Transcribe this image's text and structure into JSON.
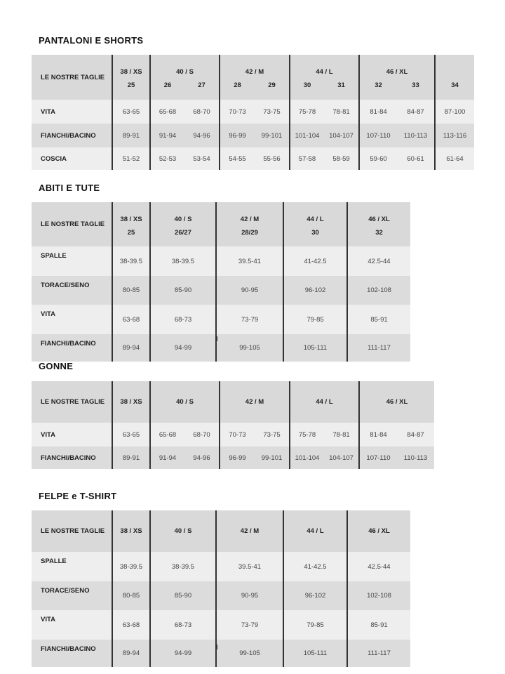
{
  "tables": [
    {
      "title": "PANTALONI E SHORTS",
      "header_label": "LE NOSTRE TAGLIE",
      "sizes": [
        "38 / XS",
        "40 / S",
        "42 / M",
        "44 / L",
        "46 / XL",
        ""
      ],
      "subheaders": [
        "25",
        "26",
        "27",
        "28",
        "29",
        "30",
        "31",
        "32",
        "33",
        "34"
      ],
      "rows": [
        {
          "label": "VITA",
          "values": [
            "63-65",
            "65-68",
            "68-70",
            "70-73",
            "73-75",
            "75-78",
            "78-81",
            "81-84",
            "84-87",
            "87-100"
          ]
        },
        {
          "label": "FIANCHI/BACINO",
          "values": [
            "89-91",
            "91-94",
            "94-96",
            "96-99",
            "99-101",
            "101-104",
            "104-107",
            "107-110",
            "110-113",
            "113-116"
          ]
        },
        {
          "label": "COSCIA",
          "values": [
            "51-52",
            "52-53",
            "53-54",
            "54-55",
            "55-56",
            "57-58",
            "58-59",
            "59-60",
            "60-61",
            "61-64"
          ]
        }
      ]
    },
    {
      "title": "ABITI E TUTE",
      "header_label": "LE NOSTRE TAGLIE",
      "sizes": [
        "38 / XS",
        "40 / S",
        "42 / M",
        "44 / L",
        "46 / XL"
      ],
      "subheaders": [
        "25",
        "26/27",
        "28/29",
        "30",
        "32"
      ],
      "rows": [
        {
          "label": "SPALLE",
          "values": [
            "38-39.5",
            "38-39.5",
            "39.5-41",
            "41-42.5",
            "42.5-44"
          ]
        },
        {
          "label": "TORACE/SENO",
          "values": [
            "80-85",
            "85-90",
            "90-95",
            "96-102",
            "102-108"
          ]
        },
        {
          "label": "VITA",
          "values": [
            "63-68",
            "68-73",
            "73-79",
            "79-85",
            "85-91"
          ]
        },
        {
          "label": "FIANCHI/BACINO",
          "values": [
            "89-94",
            "94-99",
            "99-105",
            "105-111",
            "111-117"
          ]
        }
      ]
    },
    {
      "title": "GONNE",
      "header_label": "LE NOSTRE TAGLIE",
      "sizes": [
        "38 / XS",
        "40 / S",
        "42 / M",
        "44 / L",
        "46 / XL"
      ],
      "subheaders": [],
      "rows": [
        {
          "label": "VITA",
          "values": [
            "63-65",
            "65-68",
            "68-70",
            "70-73",
            "73-75",
            "75-78",
            "78-81",
            "81-84",
            "84-87"
          ]
        },
        {
          "label": "FIANCHI/BACINO",
          "values": [
            "89-91",
            "91-94",
            "94-96",
            "96-99",
            "99-101",
            "101-104",
            "104-107",
            "107-110",
            "110-113"
          ]
        }
      ]
    },
    {
      "title": "FELPE e T-SHIRT",
      "header_label": "LE NOSTRE TAGLIE",
      "sizes": [
        "38 / XS",
        "40 / S",
        "42 / M",
        "44 / L",
        "46 / XL"
      ],
      "subheaders": [],
      "rows": [
        {
          "label": "SPALLE",
          "values": [
            "38-39.5",
            "38-39.5",
            "39.5-41",
            "41-42.5",
            "42.5-44"
          ]
        },
        {
          "label": "TORACE/SENO",
          "values": [
            "80-85",
            "85-90",
            "90-95",
            "96-102",
            "102-108"
          ]
        },
        {
          "label": "VITA",
          "values": [
            "63-68",
            "68-73",
            "73-79",
            "79-85",
            "85-91"
          ]
        },
        {
          "label": "FIANCHI/BACINO",
          "values": [
            "89-94",
            "94-99",
            "99-105",
            "105-111",
            "111-117"
          ]
        }
      ]
    }
  ]
}
